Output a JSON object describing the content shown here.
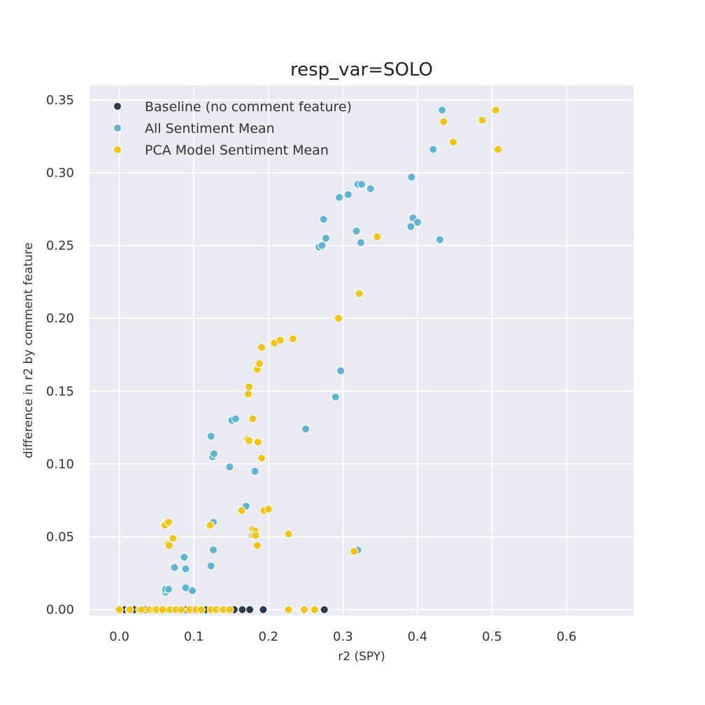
{
  "chart_data": {
    "type": "scatter",
    "title": "resp_var=SOLO",
    "xlabel": "r2 (SPY)",
    "ylabel": "difference in r2 by comment feature",
    "xlim": [
      -0.04,
      0.69
    ],
    "ylim": [
      -0.004,
      0.36
    ],
    "xticks": [
      0.0,
      0.1,
      0.2,
      0.3,
      0.4,
      0.5,
      0.6
    ],
    "xtick_labels": [
      "0.0",
      "0.1",
      "0.2",
      "0.3",
      "0.4",
      "0.5",
      "0.6"
    ],
    "yticks": [
      0.0,
      0.05,
      0.1,
      0.15,
      0.2,
      0.25,
      0.3,
      0.35
    ],
    "ytick_labels": [
      "0.00",
      "0.05",
      "0.10",
      "0.15",
      "0.20",
      "0.25",
      "0.30",
      "0.35"
    ],
    "grid": true,
    "legend_position": "top-left",
    "colors": {
      "background": "#eaeaf2",
      "grid": "#ffffff"
    },
    "series": [
      {
        "name": "Baseline (no comment feature)",
        "color": "#2e3a4f",
        "points": [
          [
            0.0,
            0.0
          ],
          [
            0.007,
            0.0
          ],
          [
            0.013,
            0.0
          ],
          [
            0.02,
            0.0
          ],
          [
            0.028,
            0.0
          ],
          [
            0.035,
            0.0
          ],
          [
            0.043,
            0.0
          ],
          [
            0.05,
            0.0
          ],
          [
            0.058,
            0.0
          ],
          [
            0.066,
            0.0
          ],
          [
            0.074,
            0.0
          ],
          [
            0.082,
            0.0
          ],
          [
            0.09,
            0.0
          ],
          [
            0.1,
            0.0
          ],
          [
            0.108,
            0.0
          ],
          [
            0.115,
            0.0
          ],
          [
            0.125,
            0.0
          ],
          [
            0.133,
            0.0
          ],
          [
            0.14,
            0.0
          ],
          [
            0.148,
            0.0
          ],
          [
            0.154,
            0.0
          ],
          [
            0.165,
            0.0
          ],
          [
            0.175,
            0.0
          ],
          [
            0.193,
            0.0
          ],
          [
            0.275,
            0.0
          ]
        ]
      },
      {
        "name": "All Sentiment Mean",
        "color": "#5fb4d3",
        "points": [
          [
            0.062,
            0.012
          ],
          [
            0.062,
            0.014
          ],
          [
            0.066,
            0.014
          ],
          [
            0.074,
            0.029
          ],
          [
            0.087,
            0.036
          ],
          [
            0.089,
            0.028
          ],
          [
            0.089,
            0.015
          ],
          [
            0.098,
            0.013
          ],
          [
            0.123,
            0.119
          ],
          [
            0.125,
            0.105
          ],
          [
            0.127,
            0.107
          ],
          [
            0.125,
            0.059
          ],
          [
            0.126,
            0.06
          ],
          [
            0.123,
            0.03
          ],
          [
            0.126,
            0.041
          ],
          [
            0.148,
            0.098
          ],
          [
            0.151,
            0.13
          ],
          [
            0.156,
            0.131
          ],
          [
            0.17,
            0.071
          ],
          [
            0.182,
            0.095
          ],
          [
            0.178,
            0.051
          ],
          [
            0.25,
            0.124
          ],
          [
            0.268,
            0.249
          ],
          [
            0.272,
            0.25
          ],
          [
            0.274,
            0.268
          ],
          [
            0.277,
            0.255
          ],
          [
            0.29,
            0.146
          ],
          [
            0.295,
            0.283
          ],
          [
            0.297,
            0.164
          ],
          [
            0.307,
            0.285
          ],
          [
            0.318,
            0.26
          ],
          [
            0.32,
            0.292
          ],
          [
            0.325,
            0.292
          ],
          [
            0.324,
            0.252
          ],
          [
            0.337,
            0.289
          ],
          [
            0.32,
            0.041
          ],
          [
            0.391,
            0.263
          ],
          [
            0.392,
            0.297
          ],
          [
            0.394,
            0.269
          ],
          [
            0.4,
            0.266
          ],
          [
            0.421,
            0.316
          ],
          [
            0.43,
            0.254
          ],
          [
            0.433,
            0.343
          ]
        ]
      },
      {
        "name": "PCA Model Sentiment Mean",
        "color": "#f0c419",
        "points": [
          [
            0.0,
            0.0
          ],
          [
            0.014,
            0.0
          ],
          [
            0.027,
            0.0
          ],
          [
            0.03,
            0.0
          ],
          [
            0.04,
            0.0
          ],
          [
            0.047,
            0.0
          ],
          [
            0.05,
            0.0
          ],
          [
            0.058,
            0.0
          ],
          [
            0.068,
            0.0
          ],
          [
            0.076,
            0.0
          ],
          [
            0.083,
            0.0
          ],
          [
            0.094,
            0.0
          ],
          [
            0.103,
            0.0
          ],
          [
            0.11,
            0.0
          ],
          [
            0.123,
            0.0
          ],
          [
            0.13,
            0.0
          ],
          [
            0.137,
            0.0
          ],
          [
            0.14,
            0.0
          ],
          [
            0.148,
            0.0
          ],
          [
            0.227,
            0.0
          ],
          [
            0.248,
            0.0
          ],
          [
            0.262,
            0.0
          ],
          [
            0.061,
            0.058
          ],
          [
            0.066,
            0.06
          ],
          [
            0.065,
            0.045
          ],
          [
            0.067,
            0.044
          ],
          [
            0.072,
            0.049
          ],
          [
            0.122,
            0.058
          ],
          [
            0.164,
            0.068
          ],
          [
            0.172,
            0.117
          ],
          [
            0.174,
            0.116
          ],
          [
            0.173,
            0.148
          ],
          [
            0.174,
            0.153
          ],
          [
            0.179,
            0.131
          ],
          [
            0.179,
            0.055
          ],
          [
            0.182,
            0.054
          ],
          [
            0.18,
            0.051
          ],
          [
            0.183,
            0.051
          ],
          [
            0.185,
            0.044
          ],
          [
            0.185,
            0.165
          ],
          [
            0.186,
            0.115
          ],
          [
            0.188,
            0.169
          ],
          [
            0.191,
            0.104
          ],
          [
            0.191,
            0.18
          ],
          [
            0.194,
            0.068
          ],
          [
            0.2,
            0.069
          ],
          [
            0.208,
            0.183
          ],
          [
            0.216,
            0.185
          ],
          [
            0.227,
            0.052
          ],
          [
            0.233,
            0.186
          ],
          [
            0.294,
            0.2
          ],
          [
            0.315,
            0.04
          ],
          [
            0.322,
            0.217
          ],
          [
            0.346,
            0.256
          ],
          [
            0.435,
            0.335
          ],
          [
            0.448,
            0.321
          ],
          [
            0.487,
            0.336
          ],
          [
            0.505,
            0.343
          ],
          [
            0.508,
            0.316
          ]
        ]
      }
    ]
  }
}
